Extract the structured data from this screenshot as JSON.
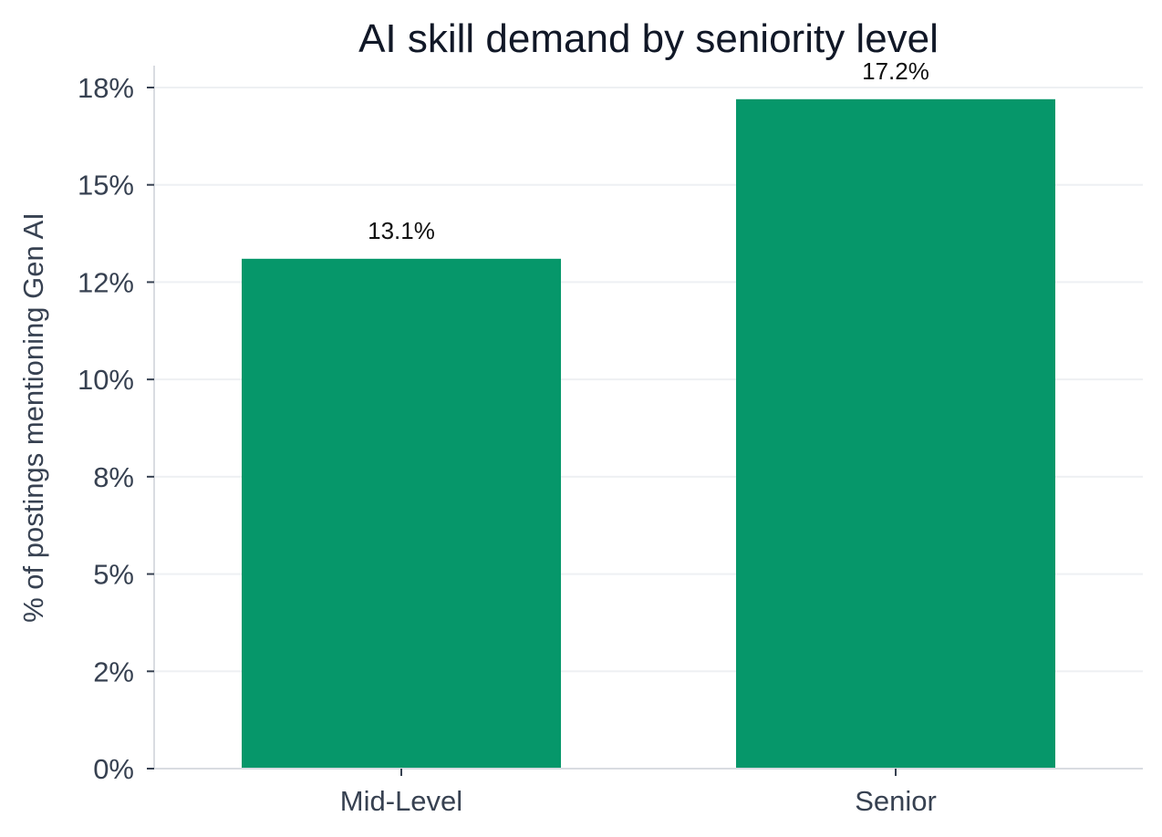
{
  "chart_data": {
    "type": "bar",
    "title": "AI skill demand by seniority level",
    "xlabel": "",
    "ylabel": "% of postings mentioning Gen AI",
    "categories": [
      "Mid-Level",
      "Senior"
    ],
    "values": [
      13.1,
      17.2
    ],
    "value_labels": [
      "13.1%",
      "17.2%"
    ],
    "ylim": [
      0,
      17.5
    ],
    "yticks": [
      0,
      2.5,
      5,
      7.5,
      10,
      12.5,
      15,
      17.5
    ],
    "ytick_labels": [
      "0%",
      "2%",
      "5%",
      "8%",
      "10%",
      "12%",
      "15%",
      "18%"
    ],
    "grid": "horizontal",
    "bar_color": "#06976a",
    "legend": "none"
  }
}
